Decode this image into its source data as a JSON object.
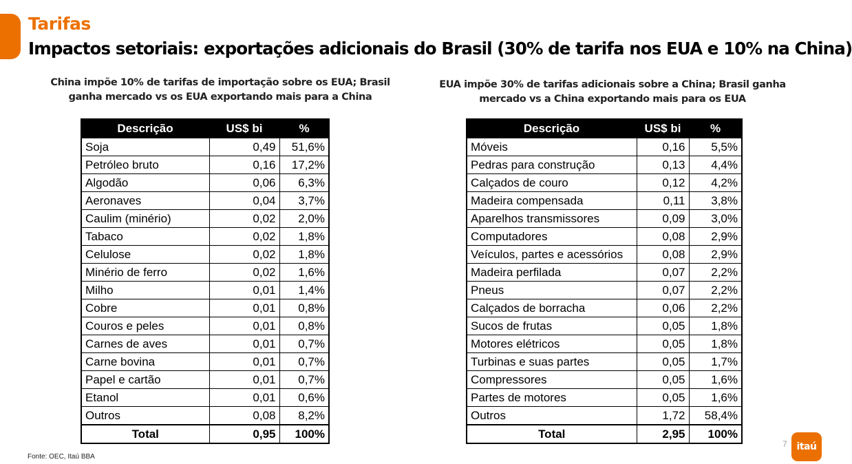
{
  "header": {
    "kicker": "Tarifas",
    "title": "Impactos setoriais: exportações adicionais do Brasil (30% de tarifa nos EUA e 10% na China)"
  },
  "left": {
    "caption": "China impõe 10% de tarifas de importação sobre os EUA; Brasil ganha mercado vs os EUA exportando mais para a China",
    "columns": [
      "Descrição",
      "US$ bi",
      "%"
    ],
    "rows": [
      {
        "desc": "Soja",
        "value": "0,49",
        "pct": "51,6%"
      },
      {
        "desc": "Petróleo bruto",
        "value": "0,16",
        "pct": "17,2%"
      },
      {
        "desc": "Algodão",
        "value": "0,06",
        "pct": "6,3%"
      },
      {
        "desc": "Aeronaves",
        "value": "0,04",
        "pct": "3,7%"
      },
      {
        "desc": "Caulim (minério)",
        "value": "0,02",
        "pct": "2,0%"
      },
      {
        "desc": "Tabaco",
        "value": "0,02",
        "pct": "1,8%"
      },
      {
        "desc": "Celulose",
        "value": "0,02",
        "pct": "1,8%"
      },
      {
        "desc": "Minério de ferro",
        "value": "0,02",
        "pct": "1,6%"
      },
      {
        "desc": "Milho",
        "value": "0,01",
        "pct": "1,4%"
      },
      {
        "desc": "Cobre",
        "value": "0,01",
        "pct": "0,8%"
      },
      {
        "desc": "Couros e peles",
        "value": "0,01",
        "pct": "0,8%"
      },
      {
        "desc": "Carnes de aves",
        "value": "0,01",
        "pct": "0,7%"
      },
      {
        "desc": "Carne bovina",
        "value": "0,01",
        "pct": "0,7%"
      },
      {
        "desc": "Papel e cartão",
        "value": "0,01",
        "pct": "0,7%"
      },
      {
        "desc": "Etanol",
        "value": "0,01",
        "pct": "0,6%"
      },
      {
        "desc": "Outros",
        "value": "0,08",
        "pct": "8,2%"
      }
    ],
    "total": {
      "desc": "Total",
      "value": "0,95",
      "pct": "100%"
    }
  },
  "right": {
    "caption": "EUA impõe 30% de tarifas adicionais sobre a China; Brasil ganha mercado vs a China exportando mais para os EUA",
    "columns": [
      "Descrição",
      "US$ bi",
      "%"
    ],
    "rows": [
      {
        "desc": "Móveis",
        "value": "0,16",
        "pct": "5,5%"
      },
      {
        "desc": "Pedras para construção",
        "value": "0,13",
        "pct": "4,4%"
      },
      {
        "desc": "Calçados de couro",
        "value": "0,12",
        "pct": "4,2%"
      },
      {
        "desc": "Madeira compensada",
        "value": "0,11",
        "pct": "3,8%"
      },
      {
        "desc": "Aparelhos transmissores",
        "value": "0,09",
        "pct": "3,0%"
      },
      {
        "desc": "Computadores",
        "value": "0,08",
        "pct": "2,9%"
      },
      {
        "desc": "Veículos, partes e acessórios",
        "value": "0,08",
        "pct": "2,9%"
      },
      {
        "desc": "Madeira perfilada",
        "value": "0,07",
        "pct": "2,2%"
      },
      {
        "desc": "Pneus",
        "value": "0,07",
        "pct": "2,2%"
      },
      {
        "desc": "Calçados de borracha",
        "value": "0,06",
        "pct": "2,2%"
      },
      {
        "desc": "Sucos de frutas",
        "value": "0,05",
        "pct": "1,8%"
      },
      {
        "desc": "Motores elétricos",
        "value": "0,05",
        "pct": "1,8%"
      },
      {
        "desc": "Turbinas e suas partes",
        "value": "0,05",
        "pct": "1,7%"
      },
      {
        "desc": "Compressores",
        "value": "0,05",
        "pct": "1,6%"
      },
      {
        "desc": "Partes de motores",
        "value": "0,05",
        "pct": "1,6%"
      },
      {
        "desc": "Outros",
        "value": "1,72",
        "pct": "58,4%"
      }
    ],
    "total": {
      "desc": "Total",
      "value": "2,95",
      "pct": "100%"
    }
  },
  "footer": {
    "source": "Fonte: OEC, Itaú BBA",
    "page_number": "7",
    "logo_text": "itaú"
  },
  "colors": {
    "brand_orange": "#ec7000",
    "header_black": "#000000"
  }
}
